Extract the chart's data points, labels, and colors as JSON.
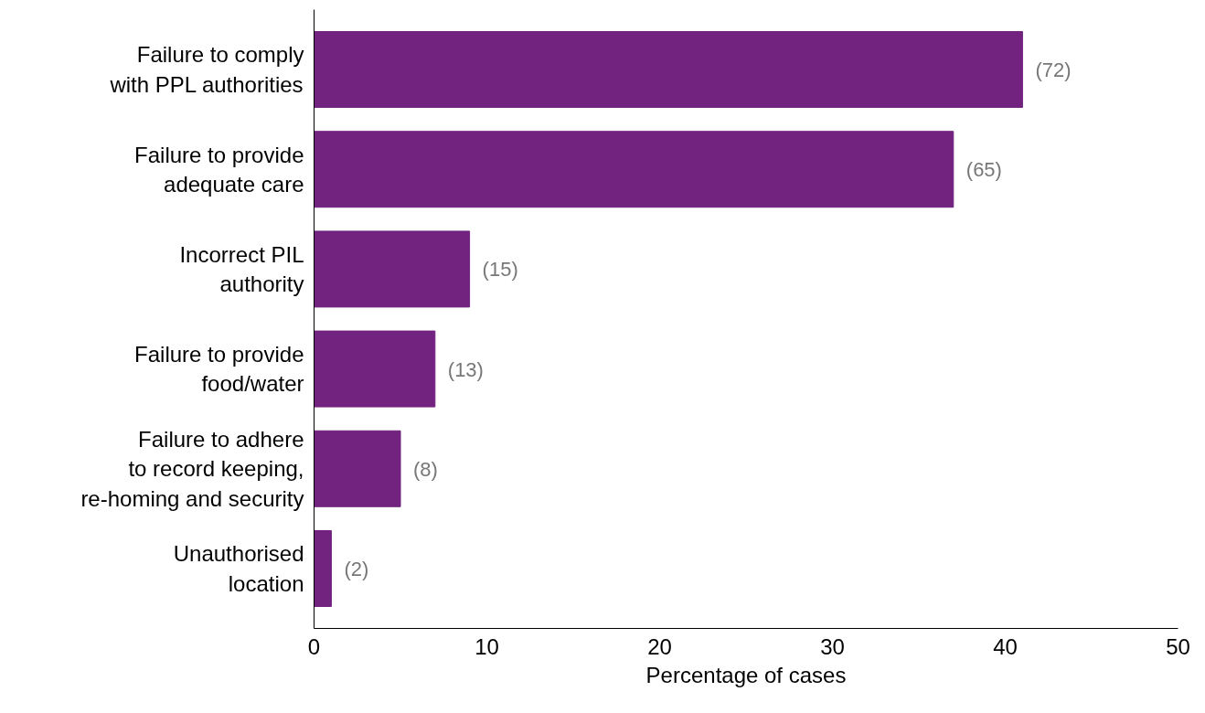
{
  "chart_data": {
    "type": "bar",
    "orientation": "horizontal",
    "xlabel": "Percentage of cases",
    "categories": [
      "Failure to comply\nwith PPL authorities",
      "Failure to provide\nadequate care",
      "Incorrect PIL\nauthority",
      "Failure to provide\nfood/water",
      "Failure to adhere\nto record keeping,\nre-homing and security",
      "Unauthorised\nlocation"
    ],
    "values": [
      41,
      37,
      9,
      7,
      5,
      1
    ],
    "annotations": [
      {
        "text": "(72)",
        "x": 41,
        "y": "Failure to comply\nwith PPL authorities"
      },
      {
        "text": "(65)",
        "x": 37,
        "y": "Failure to provide\nadequate care"
      },
      {
        "text": "(15)",
        "x": 9,
        "y": "Incorrect PIL\nauthority"
      },
      {
        "text": "(13)",
        "x": 7,
        "y": "Failure to provide\nfood/water"
      },
      {
        "text": "(8)",
        "x": 5,
        "y": "Failure to adhere\nto record keeping,\nre-homing and security"
      },
      {
        "text": "(2)",
        "x": 1,
        "y": "Unauthorised\nlocation"
      }
    ],
    "color": "#72227f",
    "xlim": [
      0,
      50
    ],
    "xticks": [
      0,
      10,
      20,
      30,
      40,
      50
    ],
    "grid": false
  }
}
